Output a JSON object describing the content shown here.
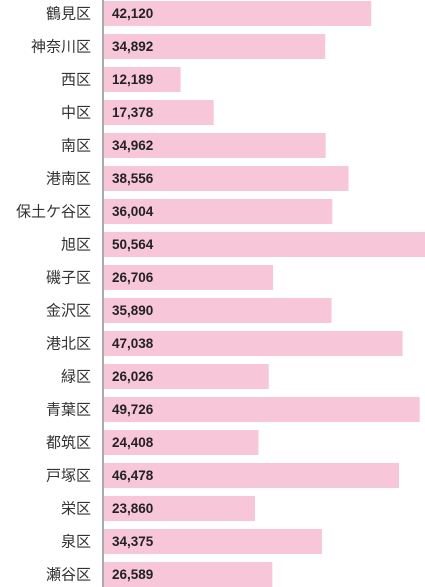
{
  "chart_data": {
    "type": "bar",
    "orientation": "horizontal",
    "title": "",
    "xlabel": "",
    "ylabel": "",
    "grid": false,
    "bar_color": "#f7c6d9",
    "categories": [
      "鶴見区",
      "神奈川区",
      "西区",
      "中区",
      "南区",
      "港南区",
      "保土ケ谷区",
      "旭区",
      "磯子区",
      "金沢区",
      "港北区",
      "緑区",
      "青葉区",
      "都筑区",
      "戸塚区",
      "栄区",
      "泉区",
      "瀬谷区"
    ],
    "values": [
      42120,
      34892,
      12189,
      17378,
      34962,
      38556,
      36004,
      50564,
      26706,
      35890,
      47038,
      26026,
      49726,
      24408,
      46478,
      23860,
      34375,
      26589
    ],
    "value_labels": [
      "42,120",
      "34,892",
      "12,189",
      "17,378",
      "34,962",
      "38,556",
      "36,004",
      "50,564",
      "26,706",
      "35,890",
      "47,038",
      "26,026",
      "49,726",
      "24,408",
      "46,478",
      "23,860",
      "34,375",
      "26,589"
    ],
    "xlim": [
      0,
      50564
    ]
  }
}
